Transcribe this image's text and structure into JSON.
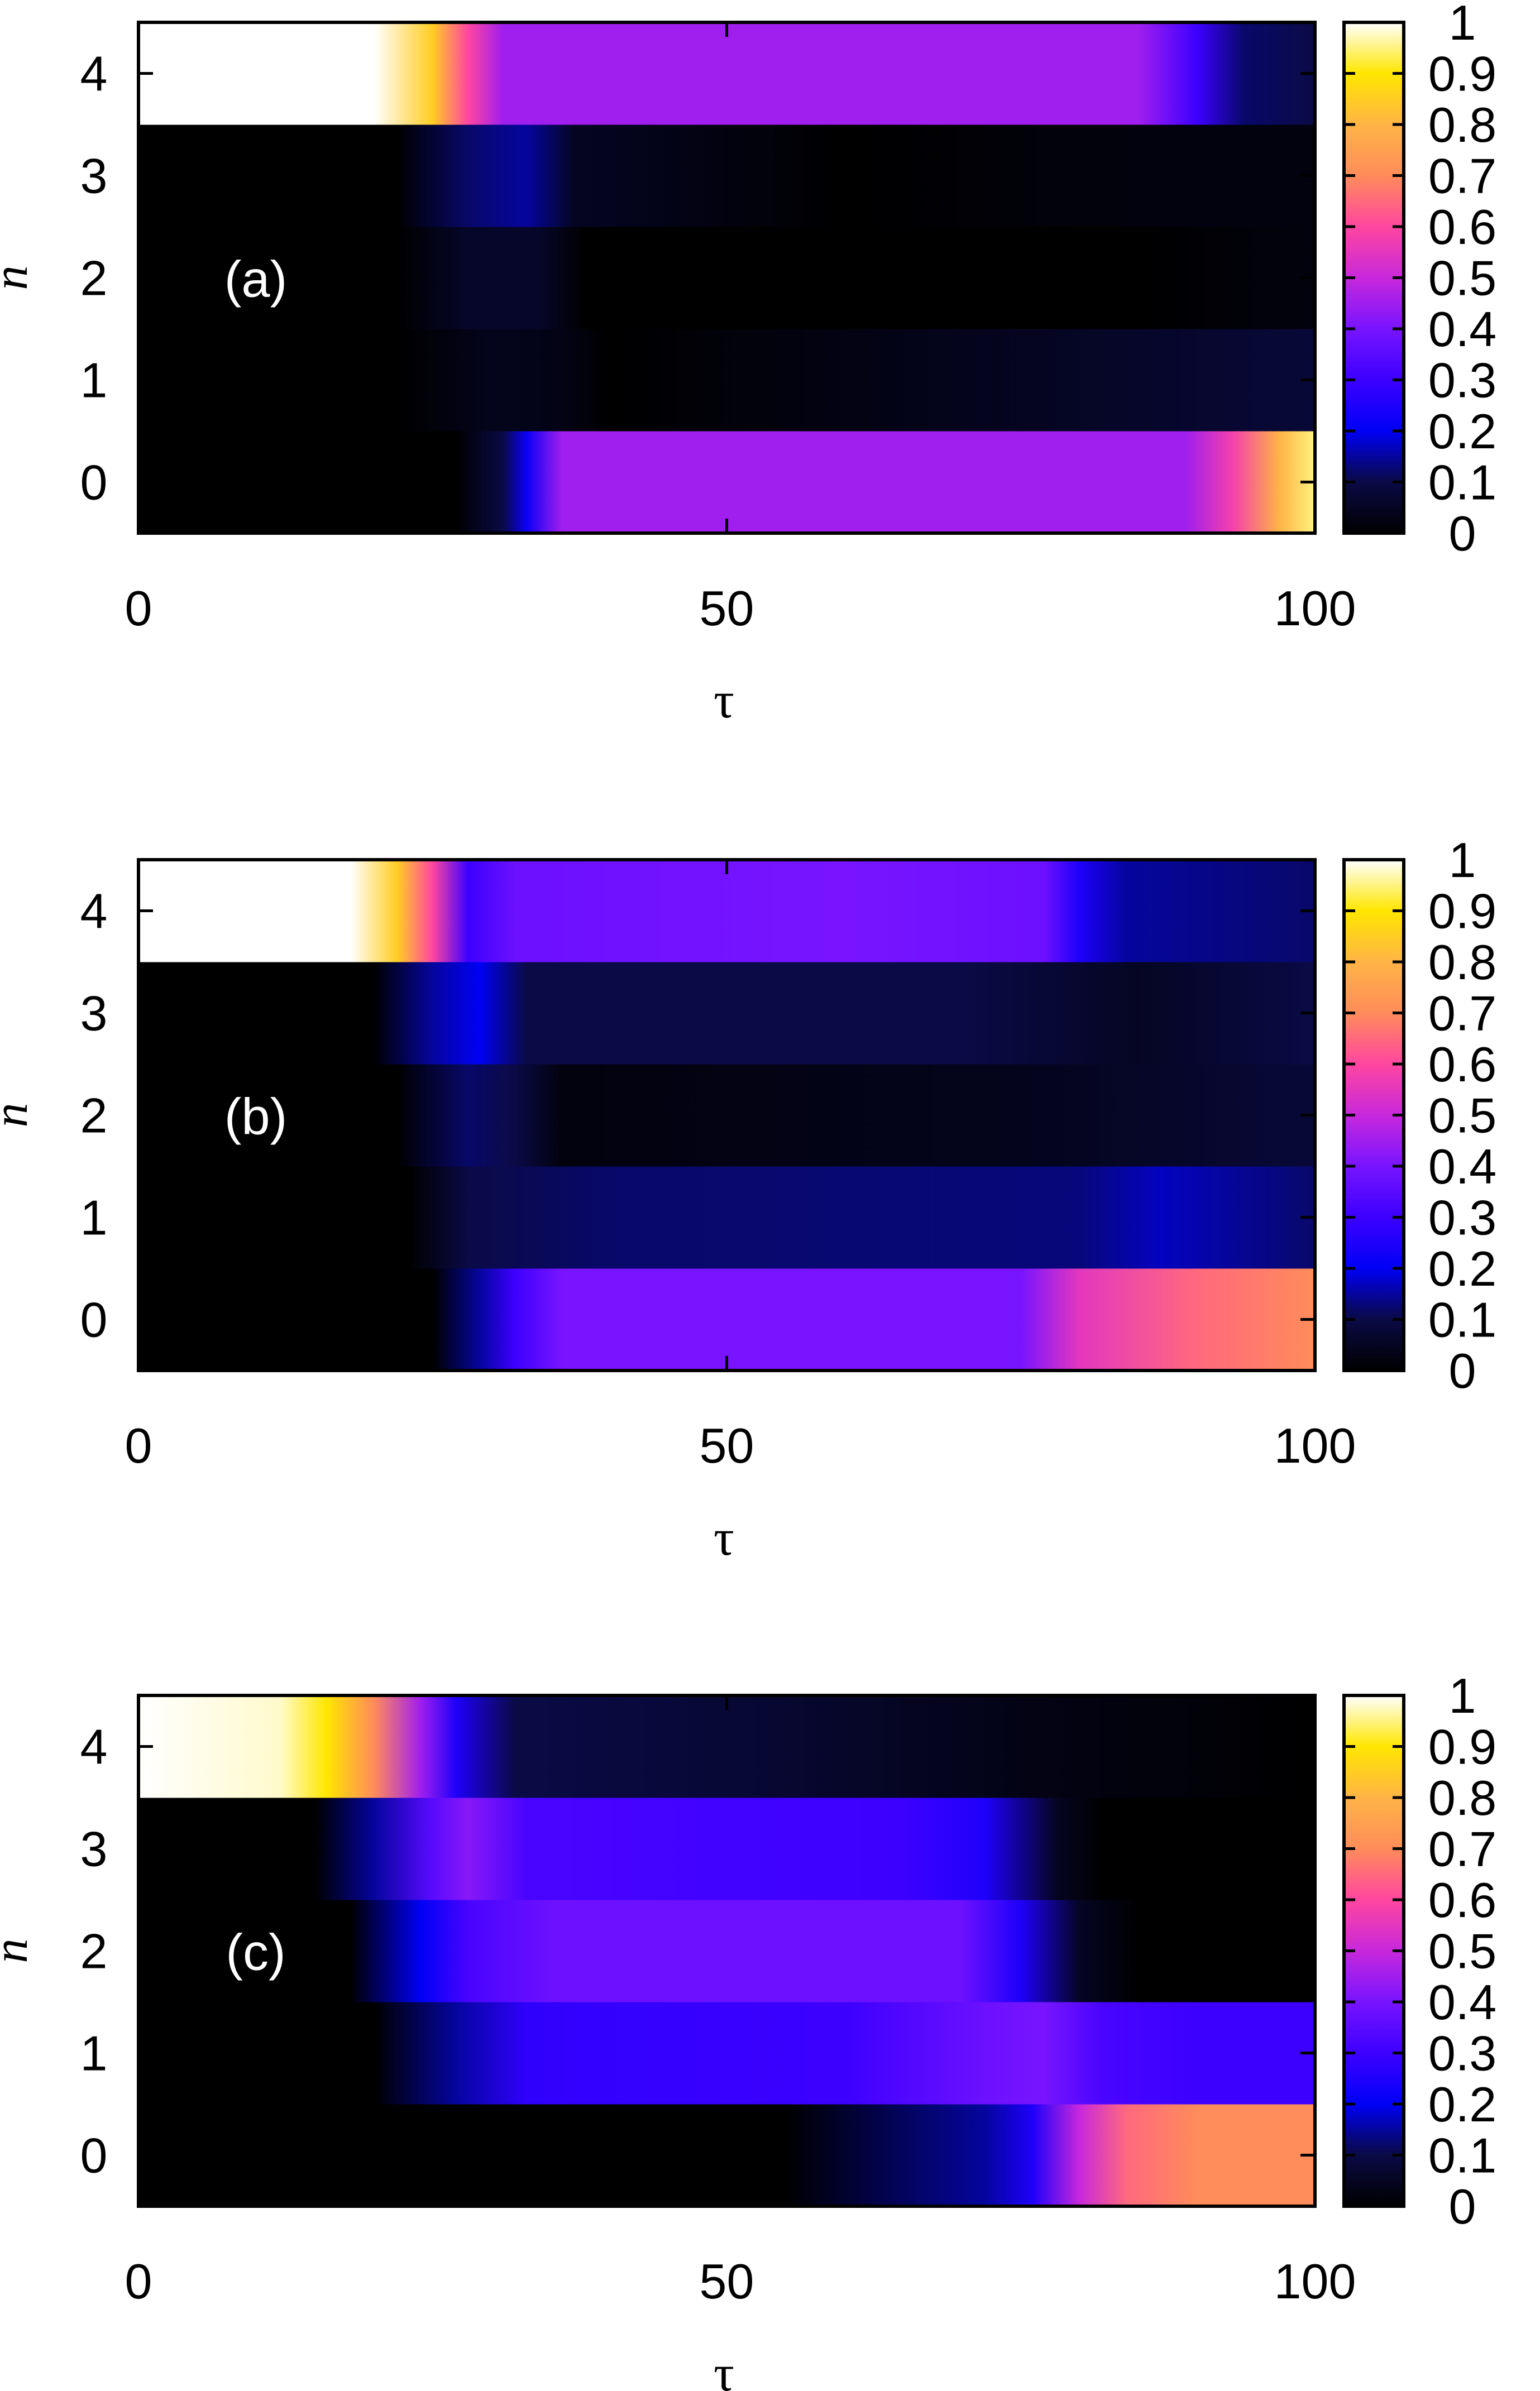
{
  "chart_data": [
    {
      "type": "heatmap",
      "panel_label": "(a)",
      "xlabel": "τ",
      "ylabel": "n",
      "xlim": [
        0,
        100
      ],
      "x_ticks": [
        "0",
        "50",
        "100"
      ],
      "y_categories": [
        "0",
        "1",
        "2",
        "3",
        "4"
      ],
      "colorbar": {
        "range": [
          0,
          1
        ],
        "ticks": [
          "0",
          "0.1",
          "0.2",
          "0.3",
          "0.4",
          "0.5",
          "0.6",
          "0.7",
          "0.8",
          "0.9",
          "1"
        ]
      },
      "rows": {
        "4": [
          [
            0,
            1.0
          ],
          [
            20,
            1.0
          ],
          [
            25,
            0.85
          ],
          [
            28,
            0.6
          ],
          [
            31,
            0.45
          ],
          [
            35,
            0.45
          ],
          [
            60,
            0.45
          ],
          [
            85,
            0.45
          ],
          [
            90,
            0.3
          ],
          [
            94,
            0.12
          ],
          [
            100,
            0.1
          ]
        ],
        "3": [
          [
            0,
            0.0
          ],
          [
            22,
            0.0
          ],
          [
            28,
            0.12
          ],
          [
            33,
            0.15
          ],
          [
            37,
            0.05
          ],
          [
            60,
            0.0
          ],
          [
            85,
            0.02
          ],
          [
            100,
            0.02
          ]
        ],
        "2": [
          [
            0,
            0.0
          ],
          [
            22,
            0.0
          ],
          [
            28,
            0.06
          ],
          [
            34,
            0.06
          ],
          [
            38,
            0.0
          ],
          [
            85,
            0.0
          ],
          [
            100,
            0.02
          ]
        ],
        "1": [
          [
            0,
            0.0
          ],
          [
            22,
            0.0
          ],
          [
            30,
            0.04
          ],
          [
            36,
            0.03
          ],
          [
            40,
            0.0
          ],
          [
            85,
            0.06
          ],
          [
            100,
            0.08
          ]
        ],
        "0": [
          [
            0,
            0.0
          ],
          [
            27,
            0.0
          ],
          [
            31,
            0.1
          ],
          [
            33,
            0.22
          ],
          [
            36,
            0.45
          ],
          [
            60,
            0.45
          ],
          [
            89,
            0.45
          ],
          [
            93,
            0.58
          ],
          [
            97,
            0.8
          ],
          [
            100,
            0.95
          ]
        ]
      }
    },
    {
      "type": "heatmap",
      "panel_label": "(b)",
      "xlabel": "τ",
      "ylabel": "n",
      "xlim": [
        0,
        100
      ],
      "x_ticks": [
        "0",
        "50",
        "100"
      ],
      "y_categories": [
        "0",
        "1",
        "2",
        "3",
        "4"
      ],
      "colorbar": {
        "range": [
          0,
          1
        ],
        "ticks": [
          "0",
          "0.1",
          "0.2",
          "0.3",
          "0.4",
          "0.5",
          "0.6",
          "0.7",
          "0.8",
          "0.9",
          "1"
        ]
      },
      "rows": {
        "4": [
          [
            0,
            1.0
          ],
          [
            18,
            1.0
          ],
          [
            22,
            0.85
          ],
          [
            25,
            0.6
          ],
          [
            28,
            0.3
          ],
          [
            32,
            0.38
          ],
          [
            60,
            0.4
          ],
          [
            77,
            0.38
          ],
          [
            80,
            0.25
          ],
          [
            84,
            0.15
          ],
          [
            100,
            0.12
          ]
        ],
        "3": [
          [
            0,
            0.0
          ],
          [
            20,
            0.0
          ],
          [
            25,
            0.15
          ],
          [
            29,
            0.2
          ],
          [
            33,
            0.1
          ],
          [
            70,
            0.1
          ],
          [
            85,
            0.05
          ],
          [
            100,
            0.1
          ]
        ],
        "2": [
          [
            0,
            0.0
          ],
          [
            22,
            0.0
          ],
          [
            28,
            0.12
          ],
          [
            32,
            0.1
          ],
          [
            36,
            0.02
          ],
          [
            75,
            0.04
          ],
          [
            100,
            0.08
          ]
        ],
        "1": [
          [
            0,
            0.0
          ],
          [
            23,
            0.0
          ],
          [
            28,
            0.1
          ],
          [
            40,
            0.12
          ],
          [
            80,
            0.13
          ],
          [
            87,
            0.17
          ],
          [
            100,
            0.12
          ]
        ],
        "0": [
          [
            0,
            0.0
          ],
          [
            25,
            0.0
          ],
          [
            29,
            0.15
          ],
          [
            32,
            0.3
          ],
          [
            36,
            0.4
          ],
          [
            75,
            0.4
          ],
          [
            80,
            0.55
          ],
          [
            90,
            0.65
          ],
          [
            100,
            0.7
          ]
        ]
      }
    },
    {
      "type": "heatmap",
      "panel_label": "(c)",
      "xlabel": "τ",
      "ylabel": "n",
      "xlim": [
        0,
        100
      ],
      "x_ticks": [
        "0",
        "50",
        "100"
      ],
      "y_categories": [
        "0",
        "1",
        "2",
        "3",
        "4"
      ],
      "colorbar": {
        "range": [
          0,
          1
        ],
        "ticks": [
          "0",
          "0.1",
          "0.2",
          "0.3",
          "0.4",
          "0.5",
          "0.6",
          "0.7",
          "0.8",
          "0.9",
          "1"
        ]
      },
      "rows": {
        "4": [
          [
            0,
            1.0
          ],
          [
            12,
            0.98
          ],
          [
            16,
            0.9
          ],
          [
            20,
            0.7
          ],
          [
            24,
            0.45
          ],
          [
            27,
            0.25
          ],
          [
            32,
            0.1
          ],
          [
            55,
            0.07
          ],
          [
            75,
            0.03
          ],
          [
            100,
            0.0
          ]
        ],
        "3": [
          [
            0,
            0.0
          ],
          [
            15,
            0.0
          ],
          [
            20,
            0.15
          ],
          [
            25,
            0.35
          ],
          [
            28,
            0.42
          ],
          [
            33,
            0.32
          ],
          [
            65,
            0.3
          ],
          [
            72,
            0.25
          ],
          [
            78,
            0.05
          ],
          [
            82,
            0.0
          ],
          [
            100,
            0.0
          ]
        ],
        "2": [
          [
            0,
            0.0
          ],
          [
            18,
            0.0
          ],
          [
            24,
            0.2
          ],
          [
            28,
            0.32
          ],
          [
            35,
            0.38
          ],
          [
            70,
            0.38
          ],
          [
            75,
            0.25
          ],
          [
            80,
            0.05
          ],
          [
            85,
            0.0
          ],
          [
            100,
            0.0
          ]
        ],
        "1": [
          [
            0,
            0.0
          ],
          [
            20,
            0.0
          ],
          [
            27,
            0.15
          ],
          [
            33,
            0.28
          ],
          [
            60,
            0.3
          ],
          [
            72,
            0.38
          ],
          [
            77,
            0.4
          ],
          [
            82,
            0.32
          ],
          [
            90,
            0.3
          ],
          [
            100,
            0.3
          ]
        ],
        "0": [
          [
            0,
            0.0
          ],
          [
            55,
            0.0
          ],
          [
            72,
            0.15
          ],
          [
            76,
            0.25
          ],
          [
            80,
            0.5
          ],
          [
            84,
            0.65
          ],
          [
            90,
            0.7
          ],
          [
            100,
            0.7
          ]
        ]
      }
    }
  ]
}
